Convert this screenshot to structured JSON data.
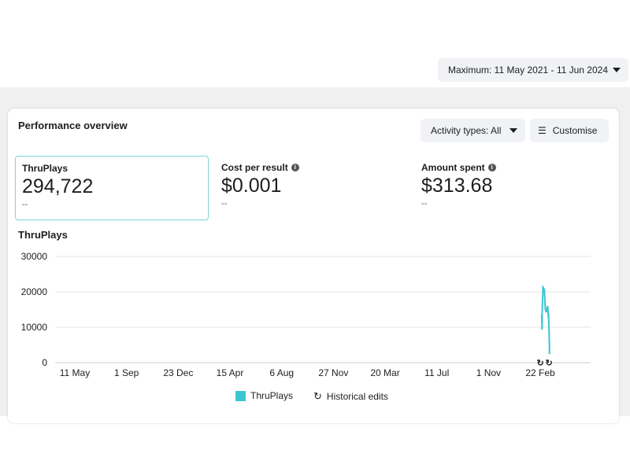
{
  "date_range": "Maximum: 11 May 2021 - 11 Jun 2024",
  "card_title": "Performance overview",
  "activity_types": "Activity types: All",
  "customise": "Customise",
  "metrics": [
    {
      "label": "ThruPlays",
      "value": "294,722",
      "compare": "--"
    },
    {
      "label": "Cost per result",
      "value": "$0.001",
      "compare": "--"
    },
    {
      "label": "Amount spent",
      "value": "$313.68",
      "compare": "--"
    }
  ],
  "accent": "#3cc5cf",
  "chart_data": {
    "type": "line",
    "title": "ThruPlays",
    "ylim": [
      0,
      30000
    ],
    "yticks": [
      0,
      10000,
      20000,
      30000
    ],
    "xlim_days": [
      0,
      1127
    ],
    "xticks": [
      {
        "day": 0,
        "label": "11 May"
      },
      {
        "day": 113,
        "label": "1 Sep"
      },
      {
        "day": 226,
        "label": "23 Dec"
      },
      {
        "day": 339,
        "label": "15 Apr"
      },
      {
        "day": 452,
        "label": "6 Aug"
      },
      {
        "day": 565,
        "label": "27 Nov"
      },
      {
        "day": 678,
        "label": "20 Mar"
      },
      {
        "day": 791,
        "label": "11 Jul"
      },
      {
        "day": 904,
        "label": "1 Nov"
      },
      {
        "day": 1017,
        "label": "22 Feb"
      }
    ],
    "series": [
      {
        "name": "ThruPlays",
        "points": [
          [
            1020,
            13500
          ],
          [
            1021,
            9300
          ],
          [
            1021,
            13800
          ],
          [
            1023,
            21300
          ],
          [
            1026,
            20600
          ],
          [
            1028,
            15100
          ],
          [
            1030,
            14200
          ],
          [
            1033,
            16000
          ],
          [
            1035,
            12400
          ],
          [
            1035,
            14000
          ],
          [
            1037,
            5300
          ],
          [
            1037,
            2400
          ]
        ]
      }
    ],
    "historical_edit_days": [
      1017,
      1036
    ],
    "legend": [
      "ThruPlays",
      "Historical edits"
    ]
  }
}
